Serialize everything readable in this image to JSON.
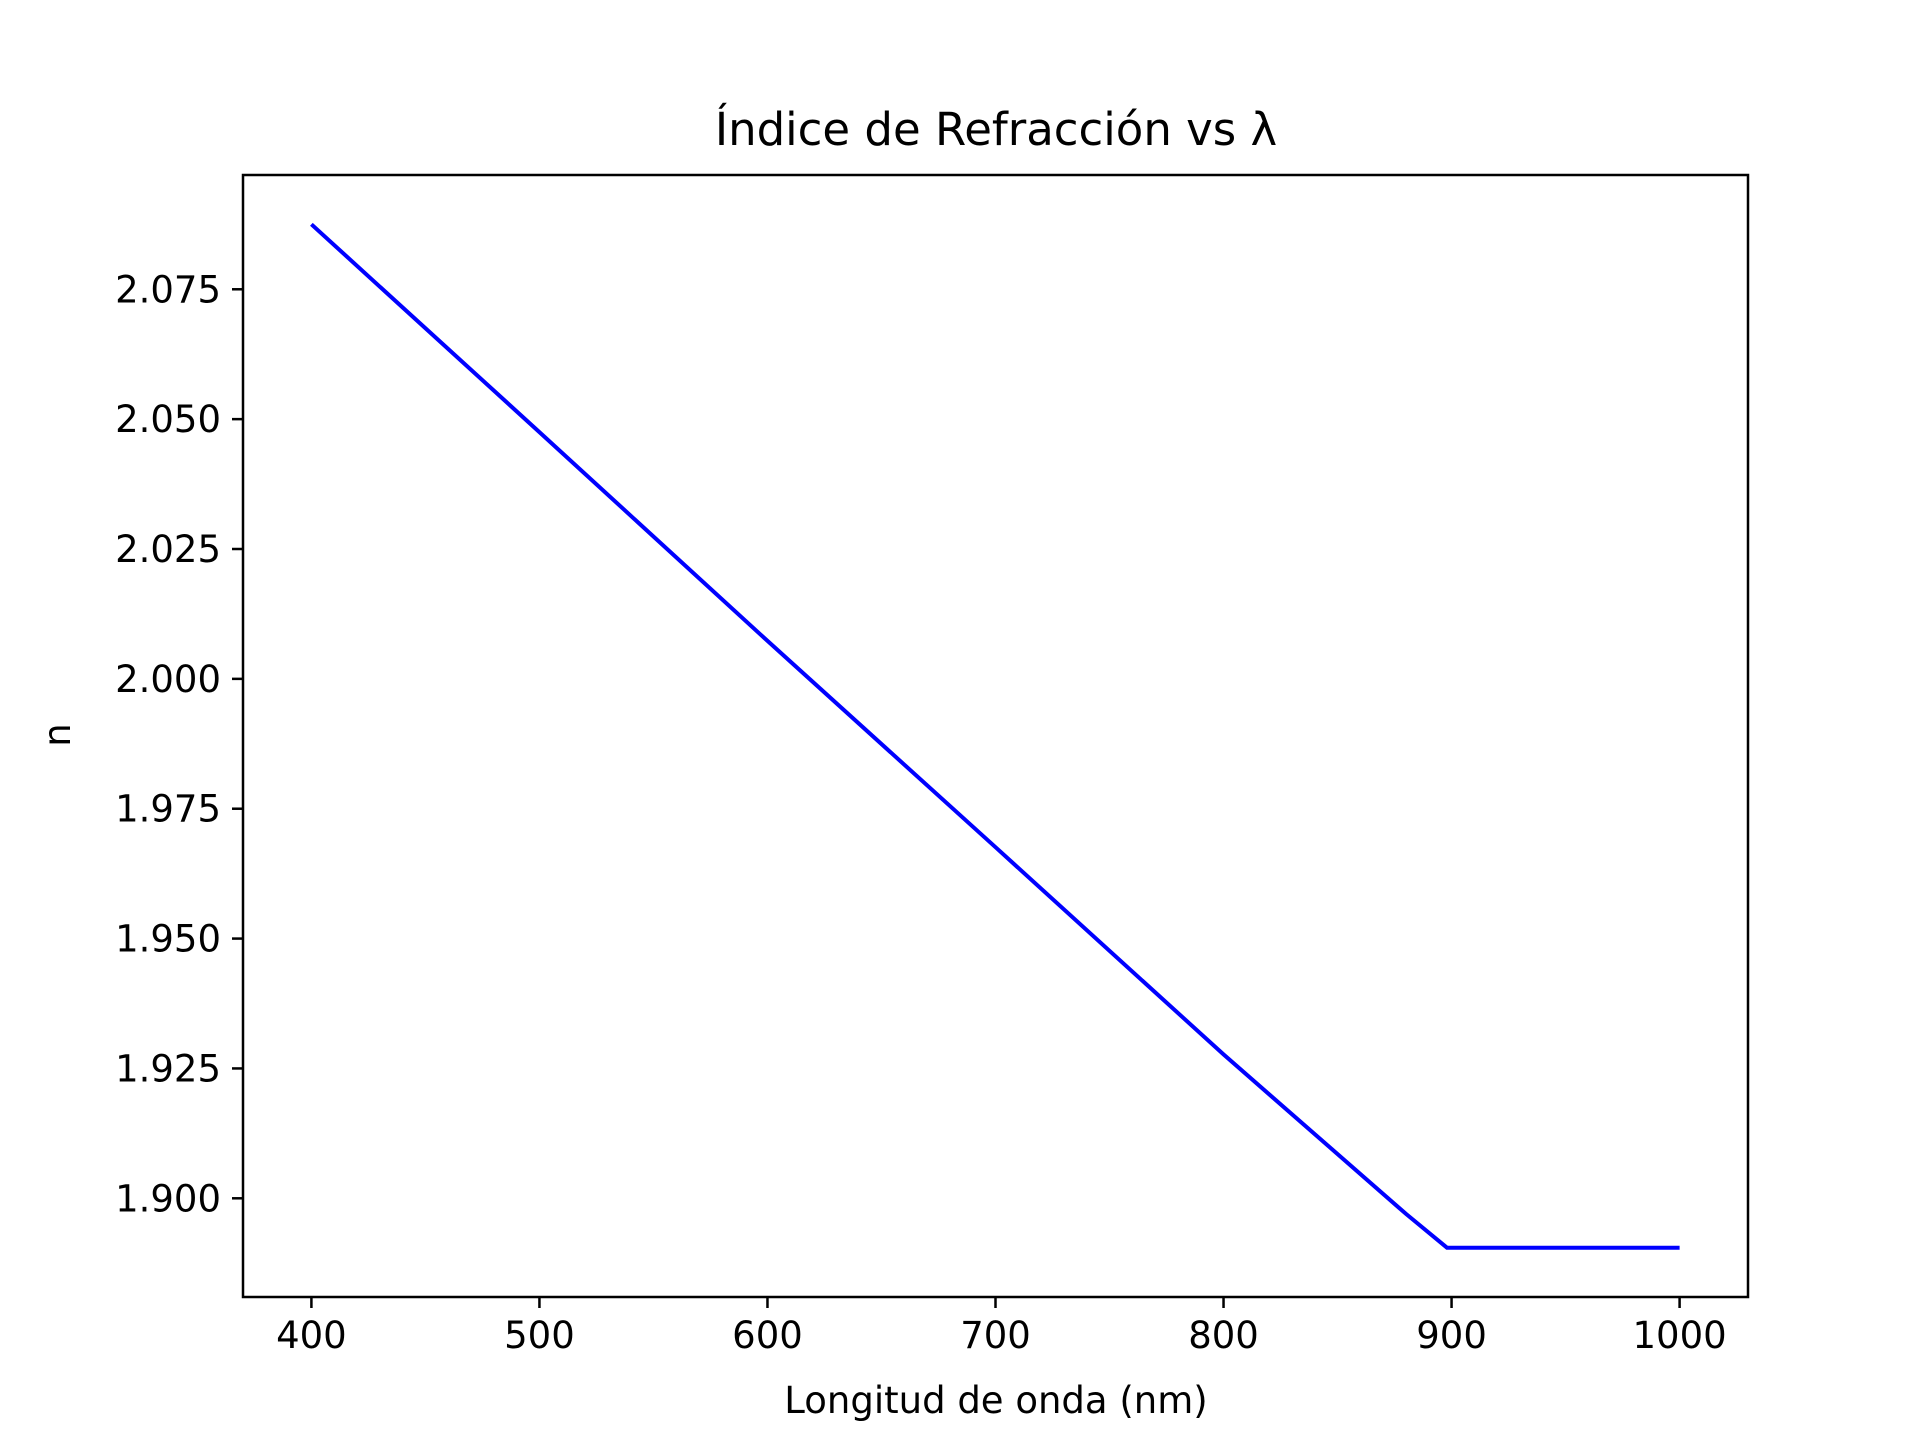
{
  "chart_data": {
    "type": "line",
    "title": "Índice de Refracción vs λ",
    "xlabel": "Longitud de onda (nm)",
    "ylabel": "n",
    "xlim": [
      370,
      1030
    ],
    "ylim": [
      1.881,
      2.097
    ],
    "xticks": [
      400,
      500,
      600,
      700,
      800,
      900,
      1000
    ],
    "xtick_labels": [
      "400",
      "500",
      "600",
      "700",
      "800",
      "900",
      "1000"
    ],
    "yticks": [
      1.9,
      1.925,
      1.95,
      1.975,
      2.0,
      2.025,
      2.05,
      2.075
    ],
    "ytick_labels": [
      "1.900",
      "1.925",
      "1.950",
      "1.975",
      "2.000",
      "2.025",
      "2.050",
      "2.075"
    ],
    "grid": false,
    "series": [
      {
        "color": "#0000ff",
        "x": [
          400,
          500,
          600,
          700,
          800,
          880,
          898,
          950,
          1000
        ],
        "y": [
          2.0875,
          2.0475,
          2.0073,
          1.9676,
          1.9277,
          1.897,
          1.8905,
          1.8905,
          1.8905
        ]
      }
    ]
  }
}
